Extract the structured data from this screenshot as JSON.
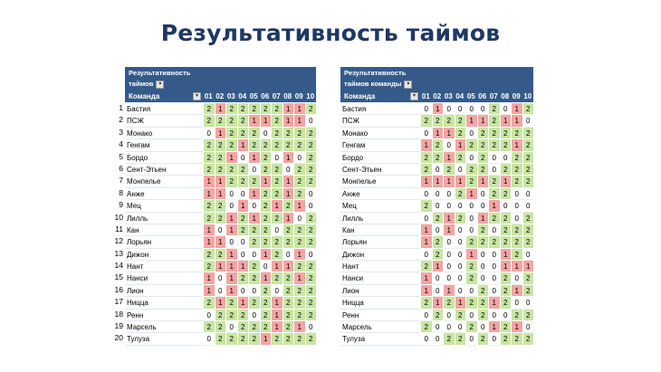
{
  "title": "Результативность таймов",
  "row_numbers": [
    "1",
    "2",
    "3",
    "4",
    "5",
    "6",
    "7",
    "8",
    "9",
    "10",
    "11",
    "12",
    "13",
    "14",
    "15",
    "16",
    "17",
    "18",
    "19",
    "20"
  ],
  "left_table": {
    "header_line1": "Результативность",
    "header_line2": "таймов",
    "name_header": "Команда",
    "columns": [
      "01",
      "02",
      "03",
      "04",
      "05",
      "06",
      "07",
      "08",
      "09",
      "10"
    ],
    "rows": [
      {
        "name": "Бастия",
        "values": [
          2,
          1,
          2,
          2,
          2,
          2,
          2,
          1,
          1,
          2
        ]
      },
      {
        "name": "ПСЖ",
        "values": [
          2,
          2,
          2,
          2,
          1,
          1,
          2,
          1,
          1,
          0
        ]
      },
      {
        "name": "Монако",
        "values": [
          0,
          1,
          2,
          2,
          2,
          0,
          2,
          2,
          2,
          2
        ]
      },
      {
        "name": "Генгам",
        "values": [
          2,
          2,
          2,
          1,
          2,
          2,
          2,
          2,
          2,
          2
        ]
      },
      {
        "name": "Бордо",
        "values": [
          2,
          2,
          1,
          0,
          1,
          2,
          0,
          1,
          0,
          2
        ]
      },
      {
        "name": "Сент-Этьен",
        "values": [
          2,
          2,
          2,
          2,
          0,
          2,
          2,
          0,
          2,
          2
        ]
      },
      {
        "name": "Монпелье",
        "values": [
          1,
          1,
          2,
          2,
          2,
          1,
          2,
          1,
          2,
          2
        ]
      },
      {
        "name": "Анже",
        "values": [
          1,
          1,
          0,
          0,
          1,
          2,
          2,
          1,
          2,
          0
        ]
      },
      {
        "name": "Мец",
        "values": [
          2,
          2,
          0,
          1,
          0,
          2,
          1,
          2,
          1,
          0
        ]
      },
      {
        "name": "Лилль",
        "values": [
          2,
          2,
          1,
          2,
          1,
          2,
          2,
          1,
          0,
          2
        ]
      },
      {
        "name": "Кан",
        "values": [
          1,
          0,
          1,
          2,
          2,
          2,
          0,
          2,
          2,
          2
        ]
      },
      {
        "name": "Лорьян",
        "values": [
          1,
          1,
          0,
          0,
          2,
          2,
          2,
          2,
          2,
          2
        ]
      },
      {
        "name": "Дижон",
        "values": [
          2,
          2,
          1,
          0,
          0,
          1,
          2,
          0,
          1,
          0
        ]
      },
      {
        "name": "Нант",
        "values": [
          2,
          1,
          1,
          1,
          2,
          0,
          1,
          1,
          2,
          2
        ]
      },
      {
        "name": "Нанси",
        "values": [
          1,
          0,
          1,
          2,
          2,
          1,
          2,
          2,
          1,
          2
        ]
      },
      {
        "name": "Лион",
        "values": [
          1,
          0,
          1,
          0,
          0,
          2,
          0,
          2,
          2,
          2
        ]
      },
      {
        "name": "Ницца",
        "values": [
          2,
          1,
          2,
          1,
          2,
          2,
          1,
          2,
          2,
          2
        ]
      },
      {
        "name": "Ренн",
        "values": [
          0,
          2,
          2,
          2,
          0,
          2,
          1,
          2,
          2,
          2
        ]
      },
      {
        "name": "Марсель",
        "values": [
          2,
          2,
          0,
          2,
          2,
          2,
          1,
          2,
          1,
          0
        ]
      },
      {
        "name": "Тулуза",
        "values": [
          0,
          2,
          2,
          2,
          2,
          1,
          2,
          2,
          2,
          2
        ]
      }
    ]
  },
  "right_table": {
    "header_line1": "Результативность",
    "header_line2": "таймов команды",
    "name_header": "Команда",
    "columns": [
      "01",
      "02",
      "03",
      "04",
      "05",
      "06",
      "07",
      "08",
      "09",
      "10"
    ],
    "rows": [
      {
        "name": "Бастия",
        "values": [
          0,
          1,
          0,
          0,
          0,
          0,
          2,
          0,
          1,
          2
        ]
      },
      {
        "name": "ПСЖ",
        "values": [
          2,
          2,
          2,
          2,
          1,
          1,
          2,
          1,
          1,
          0
        ]
      },
      {
        "name": "Монако",
        "values": [
          0,
          1,
          1,
          2,
          0,
          2,
          2,
          2,
          2,
          2
        ]
      },
      {
        "name": "Генгам",
        "values": [
          1,
          2,
          0,
          1,
          2,
          2,
          2,
          2,
          1,
          2
        ]
      },
      {
        "name": "Бордо",
        "values": [
          2,
          2,
          1,
          2,
          0,
          2,
          0,
          0,
          2,
          2
        ]
      },
      {
        "name": "Сент-Этьен",
        "values": [
          2,
          0,
          2,
          0,
          2,
          2,
          0,
          2,
          2,
          2
        ]
      },
      {
        "name": "Монпелье",
        "values": [
          1,
          1,
          1,
          1,
          2,
          1,
          2,
          1,
          2,
          2
        ]
      },
      {
        "name": "Анже",
        "values": [
          0,
          0,
          0,
          2,
          1,
          0,
          2,
          2,
          0,
          0
        ]
      },
      {
        "name": "Мец",
        "values": [
          2,
          0,
          0,
          0,
          0,
          0,
          1,
          0,
          0,
          0
        ]
      },
      {
        "name": "Лилль",
        "values": [
          0,
          2,
          1,
          2,
          0,
          1,
          2,
          2,
          0,
          2
        ]
      },
      {
        "name": "Кан",
        "values": [
          1,
          0,
          1,
          0,
          0,
          2,
          0,
          2,
          2,
          2
        ]
      },
      {
        "name": "Лорьян",
        "values": [
          1,
          2,
          0,
          0,
          2,
          2,
          2,
          2,
          2,
          2
        ]
      },
      {
        "name": "Дижон",
        "values": [
          0,
          2,
          0,
          0,
          1,
          0,
          0,
          1,
          2,
          0
        ]
      },
      {
        "name": "Нант",
        "values": [
          2,
          1,
          0,
          0,
          2,
          0,
          0,
          1,
          1,
          1
        ]
      },
      {
        "name": "Нанси",
        "values": [
          1,
          0,
          0,
          0,
          2,
          0,
          0,
          2,
          0,
          2
        ]
      },
      {
        "name": "Лион",
        "values": [
          1,
          0,
          1,
          0,
          0,
          2,
          0,
          2,
          1,
          2
        ]
      },
      {
        "name": "Ницца",
        "values": [
          2,
          1,
          2,
          1,
          2,
          2,
          1,
          2,
          0,
          0
        ]
      },
      {
        "name": "Ренн",
        "values": [
          0,
          2,
          0,
          2,
          0,
          2,
          0,
          0,
          2,
          2
        ]
      },
      {
        "name": "Марсель",
        "values": [
          2,
          0,
          0,
          0,
          2,
          0,
          1,
          2,
          1,
          0
        ]
      },
      {
        "name": "Тулуза",
        "values": [
          0,
          0,
          2,
          2,
          0,
          2,
          0,
          2,
          2,
          2
        ]
      }
    ]
  },
  "colors": {
    "header": "#355a8a",
    "value_1": "#f4a5a3",
    "value_2": "#c8e6a4",
    "title": "#1f3864"
  }
}
